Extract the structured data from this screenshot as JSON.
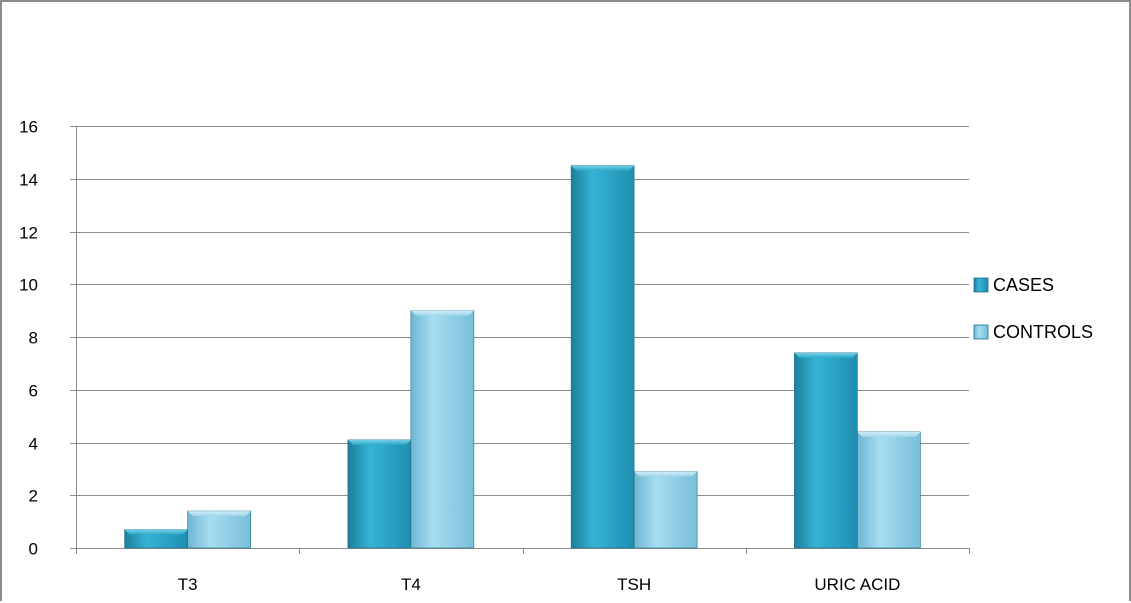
{
  "chart_data": {
    "type": "bar",
    "categories": [
      "T3",
      "T4",
      "TSH",
      "URIC ACID"
    ],
    "series": [
      {
        "name": "CASES",
        "values": [
          0.7,
          4.1,
          14.5,
          7.4
        ],
        "color": "#2ea8c8"
      },
      {
        "name": "CONTROLS",
        "values": [
          1.4,
          9.0,
          2.9,
          4.4
        ],
        "color": "#8fd0e8"
      }
    ],
    "title": "",
    "xlabel": "",
    "ylabel": "",
    "ylim": [
      0,
      16
    ],
    "yticks": [
      0,
      2,
      4,
      6,
      8,
      10,
      12,
      14,
      16
    ],
    "grid": "horizontal",
    "legend": "right"
  }
}
